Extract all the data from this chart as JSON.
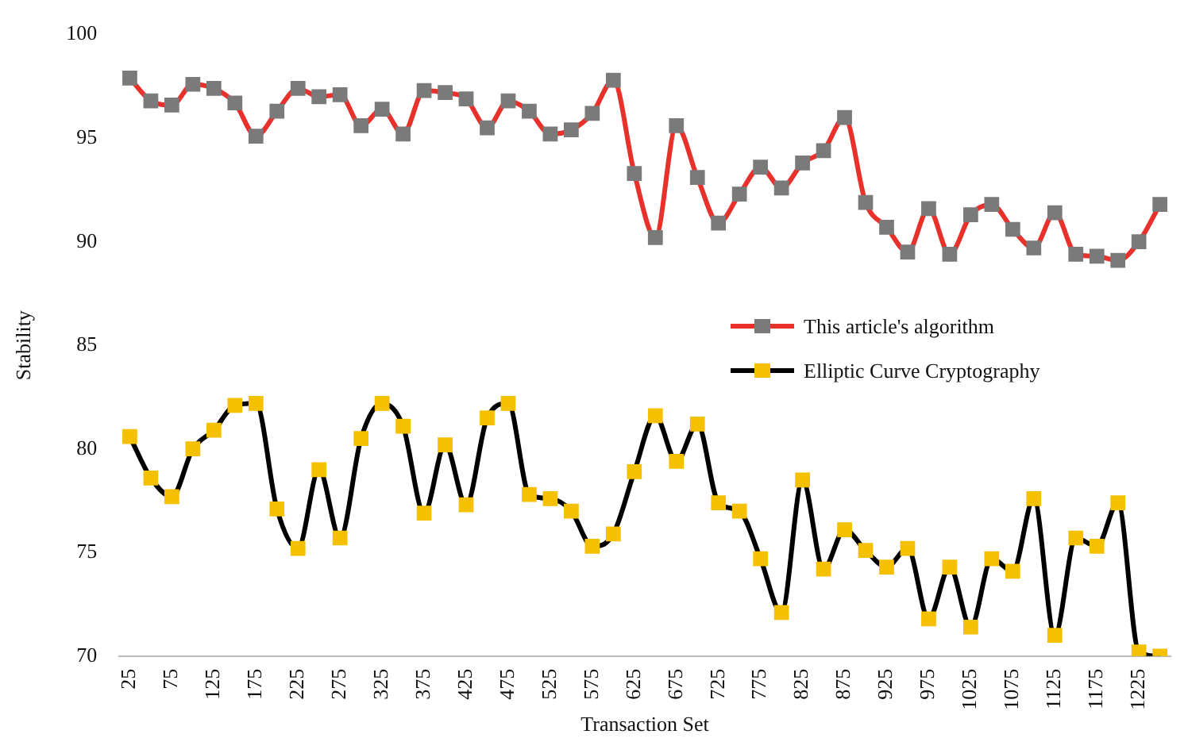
{
  "chart_data": {
    "type": "line",
    "xlabel": "Transaction Set",
    "ylabel": "Stability",
    "categories": [
      "25",
      null,
      "75",
      null,
      "125",
      null,
      "175",
      null,
      "225",
      null,
      "275",
      null,
      "325",
      null,
      "375",
      null,
      "425",
      null,
      "475",
      null,
      "525",
      null,
      "575",
      null,
      "625",
      null,
      "675",
      null,
      "725",
      null,
      "775",
      null,
      "825",
      null,
      "875",
      null,
      "925",
      null,
      "975",
      null,
      "1025",
      null,
      "1075",
      null,
      "1125",
      null,
      "1175",
      null,
      "1225",
      null
    ],
    "series": [
      {
        "name": "This article's algorithm",
        "color": "#e8312a",
        "colors": [
          "#7a7a7a",
          "#7a7a7a",
          "#7a7a7a",
          "#7a7a7a",
          "#7a7a7a",
          "#7a7a7a",
          "#7a7a7a",
          "#7a7a7a",
          "#7a7a7a",
          "#7a7a7a",
          "#7a7a7a",
          "#7a7a7a",
          "#7a7a7a",
          "#7a7a7a",
          "#7a7a7a",
          "#7a7a7a",
          "#7a7a7a",
          "#7a7a7a",
          "#7a7a7a",
          "#7a7a7a",
          "#7a7a7a",
          "#7a7a7a",
          "#7a7a7a",
          "#7a7a7a",
          "#7a7a7a",
          "#7a7a7a",
          "#7a7a7a",
          "#7a7a7a",
          "#7a7a7a",
          "#7a7a7a",
          "#7a7a7a",
          "#7a7a7a",
          "#7a7a7a",
          "#7a7a7a",
          "#7a7a7a",
          "#7a7a7a",
          "#7a7a7a",
          "#7a7a7a",
          "#7a7a7a",
          "#7a7a7a",
          "#7a7a7a",
          "#7a7a7a",
          "#7a7a7a",
          "#7a7a7a",
          "#7a7a7a",
          "#7a7a7a",
          "#7a7a7a",
          "#7a7a7a",
          "#7a7a7a",
          "#7a7a7a"
        ],
        "values": [
          97.9,
          96.8,
          96.6,
          97.6,
          97.4,
          96.7,
          95.1,
          96.3,
          97.4,
          97.0,
          97.1,
          95.6,
          96.4,
          95.2,
          97.3,
          97.2,
          96.9,
          95.5,
          96.8,
          96.3,
          95.2,
          95.4,
          96.2,
          97.8,
          93.3,
          90.2,
          95.6,
          93.1,
          90.9,
          92.3,
          93.6,
          92.6,
          93.8,
          94.4,
          96.0,
          91.9,
          90.7,
          89.5,
          91.6,
          89.4,
          91.3,
          91.8,
          90.6,
          89.7,
          91.4,
          89.4,
          89.3,
          89.1,
          90.0,
          91.8
        ]
      },
      {
        "name": "Elliptic Curve Cryptography",
        "color": "#000000",
        "colors": [
          "#f5c000",
          "#f5c000",
          "#f5c000",
          "#f5c000",
          "#f5c000",
          "#f5c000",
          "#f5c000",
          "#f5c000",
          "#f5c000",
          "#f5c000",
          "#f5c000",
          "#f5c000",
          "#f5c000",
          "#f5c000",
          "#f5c000",
          "#f5c000",
          "#f5c000",
          "#f5c000",
          "#f5c000",
          "#f5c000",
          "#f5c000",
          "#f5c000",
          "#f5c000",
          "#f5c000",
          "#f5c000",
          "#f5c000",
          "#f5c000",
          "#f5c000",
          "#f5c000",
          "#f5c000",
          "#f5c000",
          "#f5c000",
          "#f5c000",
          "#f5c000",
          "#f5c000",
          "#f5c000",
          "#f5c000",
          "#f5c000",
          "#f5c000",
          "#f5c000",
          "#f5c000",
          "#f5c000",
          "#f5c000",
          "#f5c000",
          "#f5c000",
          "#f5c000",
          "#f5c000",
          "#f5c000",
          "#f5c000",
          "#f5c000"
        ],
        "values": [
          80.6,
          78.6,
          77.7,
          80.0,
          80.9,
          82.1,
          82.2,
          77.1,
          75.2,
          79.0,
          75.7,
          80.5,
          82.2,
          81.1,
          76.9,
          80.2,
          77.3,
          81.5,
          82.2,
          77.8,
          77.6,
          77.0,
          75.3,
          75.9,
          78.9,
          81.6,
          79.4,
          81.2,
          77.4,
          77.0,
          74.7,
          72.1,
          78.5,
          74.2,
          76.1,
          75.1,
          74.3,
          75.2,
          71.8,
          74.3,
          71.4,
          74.7,
          74.1,
          77.6,
          71.0,
          75.7,
          75.3,
          77.4,
          70.2,
          70.0
        ]
      }
    ],
    "ylim": [
      70,
      100
    ],
    "yticks": [
      70,
      75,
      80,
      85,
      90,
      95,
      100
    ],
    "grid": false,
    "legend": "right",
    "marker": "square",
    "line_style": "solid"
  }
}
